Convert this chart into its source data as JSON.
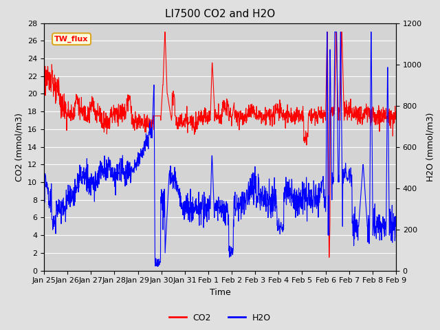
{
  "title": "LI7500 CO2 and H2O",
  "xlabel": "Time",
  "ylabel_left": "CO2 (mmol/m3)",
  "ylabel_right": "H2O (mmol/m3)",
  "co2_color": "red",
  "h2o_color": "blue",
  "fig_facecolor": "#e0e0e0",
  "plot_facecolor": "#d4d4d4",
  "ylim_left": [
    0,
    28
  ],
  "ylim_right": [
    0,
    1200
  ],
  "yticks_left": [
    0,
    2,
    4,
    6,
    8,
    10,
    12,
    14,
    16,
    18,
    20,
    22,
    24,
    26,
    28
  ],
  "yticks_right": [
    0,
    200,
    400,
    600,
    800,
    1000,
    1200
  ],
  "xtick_labels": [
    "Jan 25",
    "Jan 26",
    "Jan 27",
    "Jan 28",
    "Jan 29",
    "Jan 30",
    "Jan 31",
    "Feb 1",
    "Feb 2",
    "Feb 3",
    "Feb 4",
    "Feb 5",
    "Feb 6",
    "Feb 7",
    "Feb 8",
    "Feb 9"
  ],
  "annotation_text": "TW_flux",
  "legend_co2": "CO2",
  "legend_h2o": "H2O",
  "linewidth": 0.8,
  "title_fontsize": 11,
  "label_fontsize": 9,
  "tick_fontsize": 8
}
